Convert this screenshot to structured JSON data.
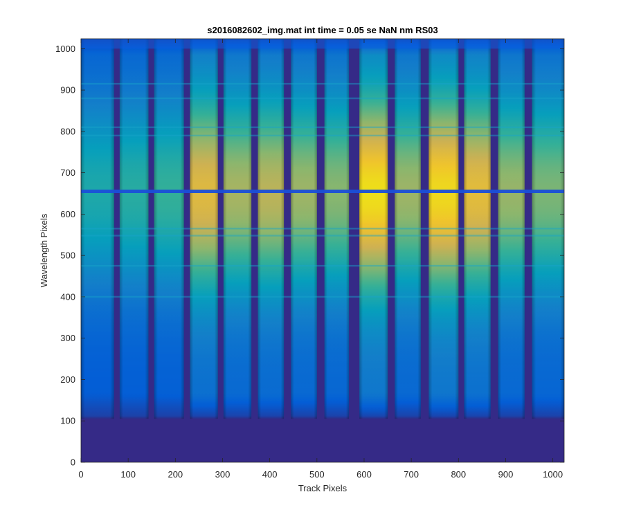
{
  "chart_data": {
    "type": "heatmap",
    "title": "s2016082602_img.mat int time = 0.05 se  NaN nm RS03",
    "xlabel": "Track Pixels",
    "ylabel": "Wavelength Pixels",
    "xlim": [
      0,
      1024
    ],
    "ylim": [
      0,
      1024
    ],
    "xticks": [
      "0",
      "100",
      "200",
      "300",
      "400",
      "500",
      "600",
      "700",
      "800",
      "900",
      "1000"
    ],
    "yticks": [
      "0",
      "100",
      "200",
      "300",
      "400",
      "500",
      "600",
      "700",
      "800",
      "900",
      "1000"
    ],
    "colormap": "parula",
    "colormap_stops": [
      "#352a87",
      "#0363e1",
      "#1485d4",
      "#06a7c6",
      "#38b99e",
      "#92bf73",
      "#d9ba56",
      "#fcce2e",
      "#f9fb0e"
    ],
    "tracks": [
      {
        "x_start": 0,
        "x_end": 70,
        "peak": 0.42
      },
      {
        "x_start": 82,
        "x_end": 143,
        "peak": 0.45
      },
      {
        "x_start": 155,
        "x_end": 218,
        "peak": 0.48
      },
      {
        "x_start": 231,
        "x_end": 290,
        "peak": 0.82
      },
      {
        "x_start": 302,
        "x_end": 361,
        "peak": 0.68
      },
      {
        "x_start": 375,
        "x_end": 430,
        "peak": 0.72
      },
      {
        "x_start": 445,
        "x_end": 500,
        "peak": 0.66
      },
      {
        "x_start": 516,
        "x_end": 568,
        "peak": 0.62
      },
      {
        "x_start": 590,
        "x_end": 650,
        "peak": 0.98
      },
      {
        "x_start": 665,
        "x_end": 720,
        "peak": 0.66
      },
      {
        "x_start": 737,
        "x_end": 800,
        "peak": 0.96
      },
      {
        "x_start": 812,
        "x_end": 868,
        "peak": 0.84
      },
      {
        "x_start": 884,
        "x_end": 940,
        "peak": 0.65
      },
      {
        "x_start": 956,
        "x_end": 1024,
        "peak": 0.6
      }
    ],
    "baseline_row": 105,
    "absorption_rows": [
      655,
      565,
      548,
      475,
      400,
      810,
      790,
      880,
      915
    ],
    "grid": false
  }
}
